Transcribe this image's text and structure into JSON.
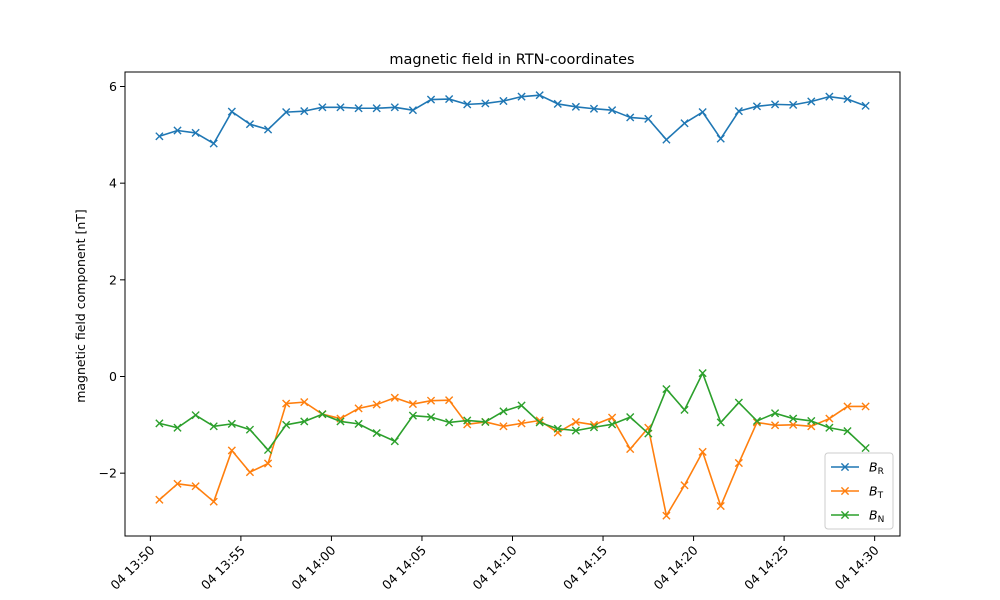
{
  "chart_data": {
    "type": "line",
    "title": "magnetic field in RTN-coordinates",
    "xlabel": "",
    "ylabel": "magnetic field component [nT]",
    "x_ticks": [
      "04 13:50",
      "04 13:55",
      "04 14:00",
      "04 14:05",
      "04 14:10",
      "04 14:15",
      "04 14:20",
      "04 14:25",
      "04 14:30"
    ],
    "x_tick_minutes": [
      0,
      5,
      10,
      15,
      20,
      25,
      30,
      35,
      40
    ],
    "y_ticks": [
      -2,
      0,
      2,
      4,
      6
    ],
    "ylim": [
      -3.3,
      6.3
    ],
    "xlim_minutes": [
      -1.4,
      41.4
    ],
    "x_minutes": [
      0.5,
      1.5,
      2.5,
      3.5,
      4.5,
      5.5,
      6.5,
      7.5,
      8.5,
      9.5,
      10.5,
      11.5,
      12.5,
      13.5,
      14.5,
      15.5,
      16.5,
      17.5,
      18.5,
      19.5,
      20.5,
      21.5,
      22.5,
      23.5,
      24.5,
      25.5,
      26.5,
      27.5,
      28.5,
      29.5,
      30.5,
      31.5,
      32.5,
      33.5,
      34.5,
      35.5,
      36.5,
      37.5,
      38.5,
      39.5
    ],
    "series": [
      {
        "name": "B",
        "subscript": "R",
        "color": "#1f77b4",
        "marker": "x",
        "values": [
          4.97,
          5.09,
          5.04,
          4.82,
          5.48,
          5.22,
          5.11,
          5.47,
          5.49,
          5.57,
          5.57,
          5.55,
          5.55,
          5.57,
          5.51,
          5.73,
          5.74,
          5.63,
          5.65,
          5.7,
          5.79,
          5.82,
          5.64,
          5.58,
          5.54,
          5.51,
          5.36,
          5.33,
          4.9,
          5.24,
          5.47,
          4.92,
          5.49,
          5.59,
          5.63,
          5.62,
          5.69,
          5.79,
          5.74,
          5.6
        ]
      },
      {
        "name": "B",
        "subscript": "T",
        "color": "#ff7f0e",
        "marker": "x",
        "values": [
          -2.55,
          -2.22,
          -2.27,
          -2.59,
          -1.53,
          -1.98,
          -1.8,
          -0.56,
          -0.53,
          -0.78,
          -0.87,
          -0.66,
          -0.58,
          -0.44,
          -0.57,
          -0.5,
          -0.49,
          -0.99,
          -0.94,
          -1.03,
          -0.97,
          -0.91,
          -1.16,
          -0.94,
          -1.0,
          -0.85,
          -1.5,
          -1.06,
          -2.88,
          -2.25,
          -1.56,
          -2.68,
          -1.79,
          -0.95,
          -1.01,
          -1.0,
          -1.03,
          -0.87,
          -0.62,
          -0.62
        ]
      },
      {
        "name": "B",
        "subscript": "N",
        "color": "#2ca02c",
        "marker": "x",
        "values": [
          -0.97,
          -1.06,
          -0.8,
          -1.03,
          -0.98,
          -1.1,
          -1.52,
          -1.0,
          -0.93,
          -0.78,
          -0.93,
          -0.98,
          -1.17,
          -1.34,
          -0.81,
          -0.84,
          -0.95,
          -0.91,
          -0.94,
          -0.72,
          -0.6,
          -0.95,
          -1.08,
          -1.12,
          -1.05,
          -0.99,
          -0.84,
          -1.18,
          -0.26,
          -0.69,
          0.07,
          -0.95,
          -0.54,
          -0.92,
          -0.76,
          -0.87,
          -0.92,
          -1.06,
          -1.13,
          -1.48
        ]
      }
    ],
    "legend_position": "lower-right",
    "grid": false
  }
}
